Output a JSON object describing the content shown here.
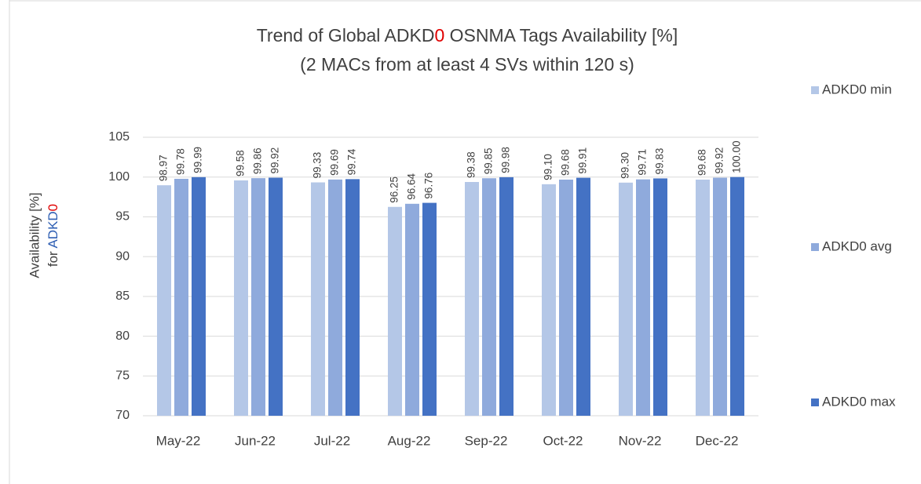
{
  "chart_data": {
    "type": "bar",
    "title": [
      "Trend of Global ADKD",
      "0",
      " OSNMA Tags Availability [%]"
    ],
    "subtitle": "(2 MACs from at least 4 SVs within 120 s)",
    "ylabel": [
      "Availability [%]",
      "for ",
      "ADKD",
      "0"
    ],
    "categories": [
      "May-22",
      "Jun-22",
      "Jul-22",
      "Aug-22",
      "Sep-22",
      "Oct-22",
      "Nov-22",
      "Dec-22"
    ],
    "series": [
      {
        "name": "ADKD0 min",
        "color": "#b4c7e7",
        "values": [
          98.97,
          99.58,
          99.33,
          96.25,
          99.38,
          99.1,
          99.3,
          99.68
        ],
        "value_labels": [
          "98.97",
          "99.58",
          "99.33",
          "96.25",
          "99.38",
          "99.10",
          "99.30",
          "99.68"
        ]
      },
      {
        "name": "ADKD0 avg",
        "color": "#8faadc",
        "values": [
          99.78,
          99.86,
          99.69,
          96.64,
          99.85,
          99.68,
          99.71,
          99.92
        ],
        "value_labels": [
          "99.78",
          "99.86",
          "99.69",
          "96.64",
          "99.85",
          "99.68",
          "99.71",
          "99.92"
        ]
      },
      {
        "name": "ADKD0 max",
        "color": "#4472c4",
        "values": [
          99.99,
          99.92,
          99.74,
          96.76,
          99.98,
          99.91,
          99.83,
          100
        ],
        "value_labels": [
          "99.99",
          "99.92",
          "99.74",
          "96.76",
          "99.98",
          "99.91",
          "99.83",
          "100.00"
        ]
      }
    ],
    "ylim": [
      70,
      105
    ],
    "yticks": [
      70,
      75,
      80,
      85,
      90,
      95,
      100,
      105
    ],
    "grid": true
  }
}
